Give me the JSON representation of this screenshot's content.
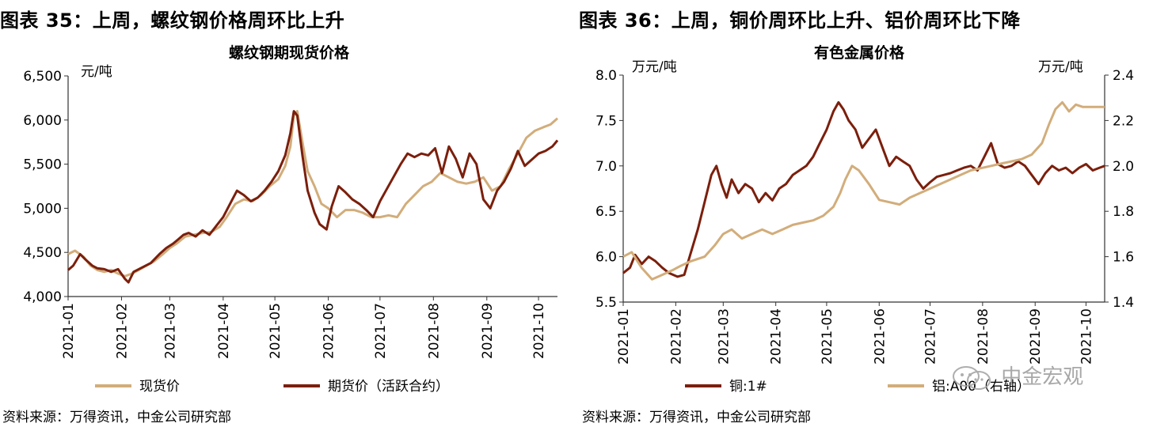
{
  "panels": [
    {
      "fig_title": "图表 35：上周，螺纹钢价格周环比上升",
      "source": "资料来源：万得资讯，中金公司研究部"
    },
    {
      "fig_title": "图表 36：上周，铜价周环比上升、铝价周环比下降",
      "source": "资料来源：万得资讯，中金公司研究部"
    }
  ],
  "watermark": "中金宏观",
  "colors": {
    "light": "#d2ad7b",
    "dark": "#7b1f0c",
    "axis": "#333333"
  },
  "chart_data": [
    {
      "type": "line",
      "title": "螺纹钢期现货价格",
      "y_unit": "元/吨",
      "ylim": [
        4000,
        6500
      ],
      "yticks": [
        "4,000",
        "4,500",
        "5,000",
        "5,500",
        "6,000",
        "6,500"
      ],
      "xlim": [
        "2021-01-01",
        "2021-10-12"
      ],
      "xticks": [
        "2021-01",
        "2021-02",
        "2021-03",
        "2021-04",
        "2021-05",
        "2021-06",
        "2021-07",
        "2021-08",
        "2021-09",
        "2021-10"
      ],
      "grid": false,
      "legend": "bottom",
      "series": [
        {
          "name": "现货价",
          "color": "#d2ad7b",
          "x": [
            "2021-01-01",
            "2021-01-05",
            "2021-01-10",
            "2021-01-14",
            "2021-01-18",
            "2021-01-22",
            "2021-01-26",
            "2021-01-30",
            "2021-02-03",
            "2021-02-07",
            "2021-02-11",
            "2021-02-20",
            "2021-02-25",
            "2021-03-01",
            "2021-03-05",
            "2021-03-10",
            "2021-03-15",
            "2021-03-20",
            "2021-03-25",
            "2021-03-30",
            "2021-04-03",
            "2021-04-08",
            "2021-04-13",
            "2021-04-18",
            "2021-04-23",
            "2021-04-28",
            "2021-05-03",
            "2021-05-07",
            "2021-05-10",
            "2021-05-12",
            "2021-05-14",
            "2021-05-17",
            "2021-05-20",
            "2021-05-24",
            "2021-05-28",
            "2021-06-01",
            "2021-06-06",
            "2021-06-11",
            "2021-06-16",
            "2021-06-21",
            "2021-06-26",
            "2021-07-01",
            "2021-07-06",
            "2021-07-11",
            "2021-07-16",
            "2021-07-21",
            "2021-07-26",
            "2021-07-31",
            "2021-08-05",
            "2021-08-10",
            "2021-08-15",
            "2021-08-20",
            "2021-08-25",
            "2021-08-30",
            "2021-09-04",
            "2021-09-09",
            "2021-09-14",
            "2021-09-19",
            "2021-09-24",
            "2021-09-29",
            "2021-10-04",
            "2021-10-08",
            "2021-10-12"
          ],
          "values": [
            4480,
            4520,
            4450,
            4350,
            4300,
            4280,
            4300,
            4260,
            4230,
            4260,
            4300,
            4400,
            4480,
            4550,
            4600,
            4680,
            4700,
            4720,
            4730,
            4790,
            4900,
            5050,
            5100,
            5080,
            5150,
            5250,
            5330,
            5480,
            5700,
            6050,
            6100,
            5750,
            5420,
            5250,
            5050,
            5000,
            4900,
            4980,
            4980,
            4950,
            4900,
            4900,
            4920,
            4900,
            5050,
            5150,
            5250,
            5300,
            5400,
            5350,
            5300,
            5280,
            5300,
            5350,
            5200,
            5250,
            5450,
            5620,
            5800,
            5880,
            5920,
            5950,
            6020
          ]
        },
        {
          "name": "期货价（活跃合约）",
          "color": "#7b1f0c",
          "x": [
            "2021-01-01",
            "2021-01-04",
            "2021-01-08",
            "2021-01-11",
            "2021-01-15",
            "2021-01-18",
            "2021-01-22",
            "2021-01-26",
            "2021-01-30",
            "2021-02-03",
            "2021-02-05",
            "2021-02-08",
            "2021-02-18",
            "2021-02-23",
            "2021-02-27",
            "2021-03-03",
            "2021-03-06",
            "2021-03-09",
            "2021-03-12",
            "2021-03-16",
            "2021-03-20",
            "2021-03-24",
            "2021-03-28",
            "2021-04-01",
            "2021-04-05",
            "2021-04-09",
            "2021-04-13",
            "2021-04-17",
            "2021-04-21",
            "2021-04-25",
            "2021-04-29",
            "2021-05-03",
            "2021-05-07",
            "2021-05-10",
            "2021-05-12",
            "2021-05-14",
            "2021-05-17",
            "2021-05-20",
            "2021-05-24",
            "2021-05-27",
            "2021-05-31",
            "2021-06-03",
            "2021-06-07",
            "2021-06-11",
            "2021-06-15",
            "2021-06-19",
            "2021-06-23",
            "2021-06-27",
            "2021-07-01",
            "2021-07-05",
            "2021-07-09",
            "2021-07-13",
            "2021-07-17",
            "2021-07-21",
            "2021-07-25",
            "2021-07-29",
            "2021-08-02",
            "2021-08-06",
            "2021-08-10",
            "2021-08-14",
            "2021-08-18",
            "2021-08-22",
            "2021-08-26",
            "2021-08-30",
            "2021-09-03",
            "2021-09-07",
            "2021-09-11",
            "2021-09-15",
            "2021-09-19",
            "2021-09-23",
            "2021-09-27",
            "2021-10-01",
            "2021-10-05",
            "2021-10-09",
            "2021-10-12"
          ],
          "values": [
            4300,
            4350,
            4480,
            4420,
            4350,
            4320,
            4310,
            4280,
            4310,
            4200,
            4160,
            4280,
            4380,
            4480,
            4550,
            4600,
            4650,
            4700,
            4720,
            4680,
            4750,
            4700,
            4800,
            4900,
            5050,
            5200,
            5150,
            5080,
            5120,
            5200,
            5300,
            5420,
            5600,
            5850,
            6100,
            6050,
            5600,
            5200,
            4950,
            4820,
            4760,
            5020,
            5250,
            5180,
            5100,
            5050,
            4980,
            4900,
            5080,
            5220,
            5360,
            5500,
            5620,
            5580,
            5620,
            5600,
            5680,
            5400,
            5700,
            5560,
            5350,
            5620,
            5500,
            5100,
            5000,
            5200,
            5300,
            5450,
            5650,
            5480,
            5550,
            5620,
            5650,
            5700,
            5770
          ]
        }
      ]
    },
    {
      "type": "line",
      "title": "有色金属价格",
      "y_unit": "万元/吨",
      "y2_unit": "万元/吨",
      "ylim": [
        5.5,
        8.0
      ],
      "yticks": [
        "5.5",
        "6.0",
        "6.5",
        "7.0",
        "7.5",
        "8.0"
      ],
      "y2lim": [
        1.4,
        2.4
      ],
      "y2ticks": [
        "1.4",
        "1.6",
        "1.8",
        "2.0",
        "2.2",
        "2.4"
      ],
      "xlim": [
        "2021-01-01",
        "2021-10-12"
      ],
      "xticks": [
        "2021-01",
        "2021-02",
        "2021-03",
        "2021-04",
        "2021-05",
        "2021-06",
        "2021-07",
        "2021-08",
        "2021-09",
        "2021-10"
      ],
      "grid": false,
      "legend": "bottom",
      "series": [
        {
          "name": "铜:1#",
          "color": "#7b1f0c",
          "axis": "left",
          "x": [
            "2021-01-01",
            "2021-01-05",
            "2021-01-08",
            "2021-01-12",
            "2021-01-16",
            "2021-01-20",
            "2021-01-24",
            "2021-01-28",
            "2021-02-02",
            "2021-02-06",
            "2021-02-10",
            "2021-02-14",
            "2021-02-18",
            "2021-02-22",
            "2021-02-25",
            "2021-02-28",
            "2021-03-03",
            "2021-03-06",
            "2021-03-10",
            "2021-03-14",
            "2021-03-18",
            "2021-03-22",
            "2021-03-26",
            "2021-03-30",
            "2021-04-03",
            "2021-04-07",
            "2021-04-11",
            "2021-04-15",
            "2021-04-19",
            "2021-04-23",
            "2021-04-27",
            "2021-05-01",
            "2021-05-05",
            "2021-05-08",
            "2021-05-11",
            "2021-05-14",
            "2021-05-18",
            "2021-05-22",
            "2021-05-26",
            "2021-05-30",
            "2021-06-03",
            "2021-06-07",
            "2021-06-11",
            "2021-06-15",
            "2021-06-19",
            "2021-06-23",
            "2021-06-27",
            "2021-07-01",
            "2021-07-05",
            "2021-07-09",
            "2021-07-13",
            "2021-07-17",
            "2021-07-21",
            "2021-07-25",
            "2021-07-29",
            "2021-08-02",
            "2021-08-06",
            "2021-08-10",
            "2021-08-14",
            "2021-08-18",
            "2021-08-22",
            "2021-08-26",
            "2021-08-30",
            "2021-09-03",
            "2021-09-07",
            "2021-09-11",
            "2021-09-15",
            "2021-09-19",
            "2021-09-23",
            "2021-09-27",
            "2021-10-01",
            "2021-10-05",
            "2021-10-09",
            "2021-10-12"
          ],
          "values": [
            5.82,
            5.88,
            6.02,
            5.92,
            6.0,
            5.95,
            5.88,
            5.82,
            5.78,
            5.8,
            6.05,
            6.3,
            6.6,
            6.9,
            7.0,
            6.8,
            6.65,
            6.85,
            6.7,
            6.8,
            6.75,
            6.6,
            6.7,
            6.62,
            6.75,
            6.8,
            6.9,
            6.95,
            7.0,
            7.1,
            7.25,
            7.4,
            7.6,
            7.7,
            7.62,
            7.5,
            7.4,
            7.2,
            7.3,
            7.4,
            7.2,
            7.0,
            7.1,
            7.05,
            7.0,
            6.85,
            6.75,
            6.82,
            6.88,
            6.9,
            6.92,
            6.95,
            6.98,
            7.0,
            6.95,
            7.1,
            7.25,
            7.02,
            6.98,
            7.0,
            7.05,
            7.0,
            6.9,
            6.8,
            6.92,
            7.0,
            6.95,
            6.98,
            6.92,
            6.98,
            7.02,
            6.95,
            6.98,
            7.0
          ]
        },
        {
          "name": "铝:A00（右轴）",
          "color": "#d2ad7b",
          "axis": "right",
          "x": [
            "2021-01-01",
            "2021-01-06",
            "2021-01-12",
            "2021-01-18",
            "2021-01-24",
            "2021-01-30",
            "2021-02-04",
            "2021-02-10",
            "2021-02-18",
            "2021-02-24",
            "2021-03-01",
            "2021-03-06",
            "2021-03-12",
            "2021-03-18",
            "2021-03-24",
            "2021-03-30",
            "2021-04-05",
            "2021-04-11",
            "2021-04-17",
            "2021-04-23",
            "2021-04-29",
            "2021-05-05",
            "2021-05-09",
            "2021-05-12",
            "2021-05-16",
            "2021-05-20",
            "2021-05-26",
            "2021-06-01",
            "2021-06-07",
            "2021-06-13",
            "2021-06-19",
            "2021-06-25",
            "2021-07-01",
            "2021-07-07",
            "2021-07-13",
            "2021-07-19",
            "2021-07-25",
            "2021-07-31",
            "2021-08-06",
            "2021-08-12",
            "2021-08-18",
            "2021-08-24",
            "2021-08-30",
            "2021-09-05",
            "2021-09-09",
            "2021-09-13",
            "2021-09-17",
            "2021-09-21",
            "2021-09-25",
            "2021-09-29",
            "2021-10-03",
            "2021-10-07",
            "2021-10-12"
          ],
          "values": [
            1.6,
            1.62,
            1.55,
            1.5,
            1.52,
            1.54,
            1.56,
            1.58,
            1.6,
            1.65,
            1.7,
            1.72,
            1.68,
            1.7,
            1.72,
            1.7,
            1.72,
            1.74,
            1.75,
            1.76,
            1.78,
            1.82,
            1.88,
            1.94,
            2.0,
            1.98,
            1.92,
            1.85,
            1.84,
            1.83,
            1.86,
            1.88,
            1.9,
            1.92,
            1.94,
            1.96,
            1.98,
            1.99,
            2.0,
            2.01,
            2.02,
            2.03,
            2.05,
            2.1,
            2.18,
            2.25,
            2.28,
            2.24,
            2.27,
            2.26,
            2.26,
            2.26,
            2.26
          ]
        }
      ]
    }
  ]
}
